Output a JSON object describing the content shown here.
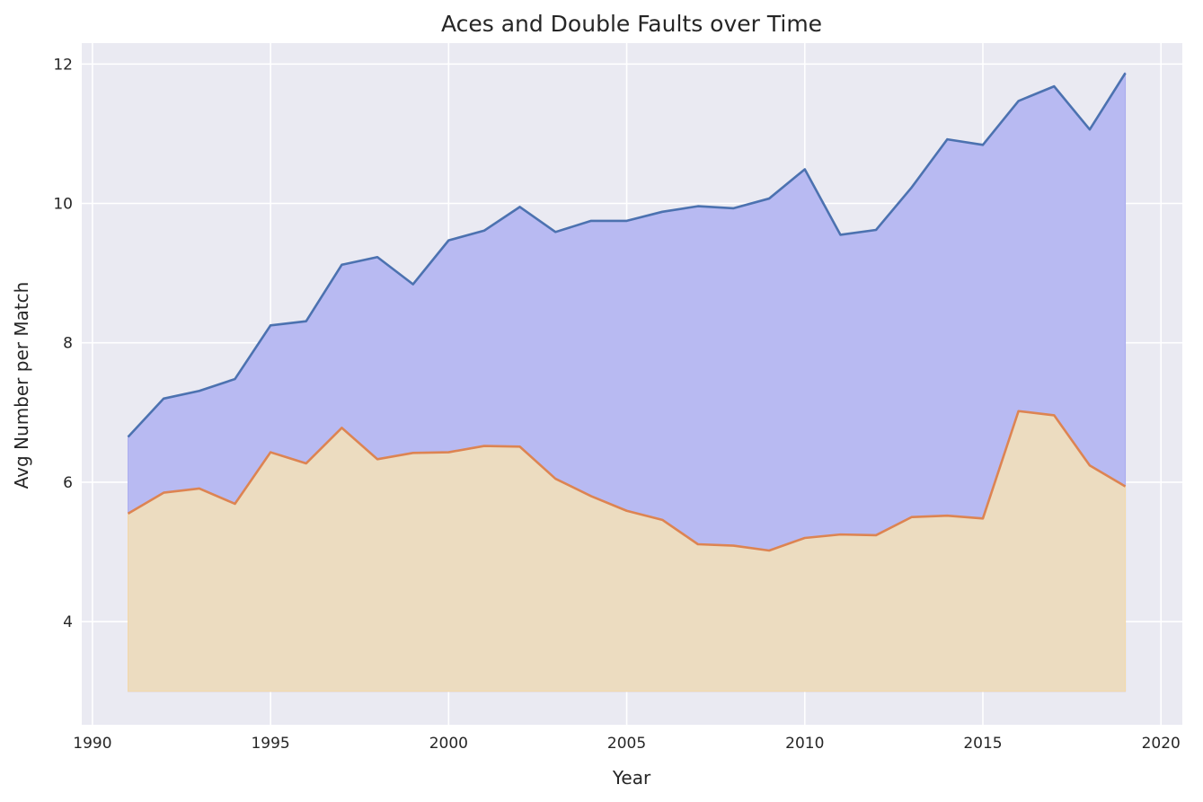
{
  "chart_data": {
    "type": "area",
    "title": "Aces and Double Faults over Time",
    "xlabel": "Year",
    "ylabel": "Avg Number per Match",
    "xlim": [
      1989.7,
      2020.6
    ],
    "ylim": [
      2.52,
      12.3
    ],
    "fill_baseline": 3.0,
    "grid": true,
    "xticks": [
      1990,
      1995,
      2000,
      2005,
      2010,
      2015,
      2020
    ],
    "yticks": [
      4,
      6,
      8,
      10,
      12
    ],
    "x": [
      1991,
      1992,
      1993,
      1994,
      1995,
      1996,
      1997,
      1998,
      1999,
      2000,
      2001,
      2002,
      2003,
      2004,
      2005,
      2006,
      2007,
      2008,
      2009,
      2010,
      2011,
      2012,
      2013,
      2014,
      2015,
      2016,
      2017,
      2018,
      2019
    ],
    "series": [
      {
        "color": "#4c72b0",
        "fill": "#b8baf2",
        "values": [
          6.65,
          7.2,
          7.31,
          7.48,
          8.25,
          8.31,
          9.12,
          9.23,
          8.84,
          9.47,
          9.61,
          9.95,
          9.59,
          9.75,
          9.75,
          9.88,
          9.96,
          9.93,
          10.07,
          10.49,
          9.55,
          9.62,
          10.23,
          10.92,
          10.84,
          11.47,
          11.68,
          11.06,
          11.87
        ]
      },
      {
        "color": "#dd8452",
        "fill": "#ecdcc0",
        "values": [
          5.55,
          5.85,
          5.91,
          5.69,
          6.43,
          6.27,
          6.78,
          6.33,
          6.42,
          6.43,
          6.52,
          6.51,
          6.05,
          5.8,
          5.59,
          5.46,
          5.11,
          5.09,
          5.02,
          5.2,
          5.25,
          5.24,
          5.5,
          5.52,
          5.48,
          7.02,
          6.96,
          6.24,
          5.94
        ]
      }
    ]
  }
}
